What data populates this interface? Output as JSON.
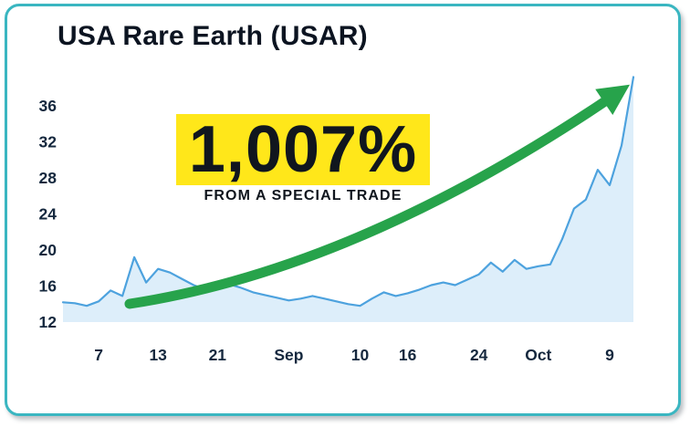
{
  "page": {
    "background": "#ffffff"
  },
  "card": {
    "title": "USA Rare Earth (USAR)",
    "border_color": "#3ab6c1"
  },
  "callout": {
    "percent": "1,007%",
    "subtitle": "FROM A SPECIAL TRADE",
    "highlight_color": "#ffe71a",
    "text_color": "#10161e"
  },
  "chart_data": {
    "type": "area",
    "title": "USA Rare Earth (USAR)",
    "xlabel": "",
    "ylabel": "",
    "ylim": [
      12,
      40
    ],
    "baseline": 12,
    "grid": false,
    "legend": false,
    "y_ticks": [
      36,
      32,
      28,
      24,
      20,
      16,
      12
    ],
    "x_tick_labels": [
      "7",
      "13",
      "21",
      "Sep",
      "10",
      "16",
      "24",
      "Oct",
      "9"
    ],
    "x_tick_indices": [
      3,
      8,
      13,
      19,
      25,
      29,
      35,
      40,
      46
    ],
    "values": [
      14.2,
      14.1,
      13.8,
      14.3,
      15.5,
      14.9,
      19.2,
      16.4,
      17.9,
      17.5,
      16.8,
      16.1,
      15.6,
      15.9,
      16.2,
      15.8,
      15.3,
      15.0,
      14.7,
      14.4,
      14.6,
      14.9,
      14.6,
      14.3,
      14.0,
      13.8,
      14.6,
      15.3,
      14.9,
      15.2,
      15.6,
      16.1,
      16.4,
      16.1,
      16.7,
      17.3,
      18.6,
      17.6,
      18.9,
      17.9,
      18.2,
      18.4,
      21.2,
      24.6,
      25.6,
      28.9,
      27.2,
      31.6,
      39.2
    ],
    "line_color": "#4da2de",
    "fill_color": "#ddeefa",
    "arrow_color": "#27a34b",
    "axis_text_color": "#15283e"
  }
}
